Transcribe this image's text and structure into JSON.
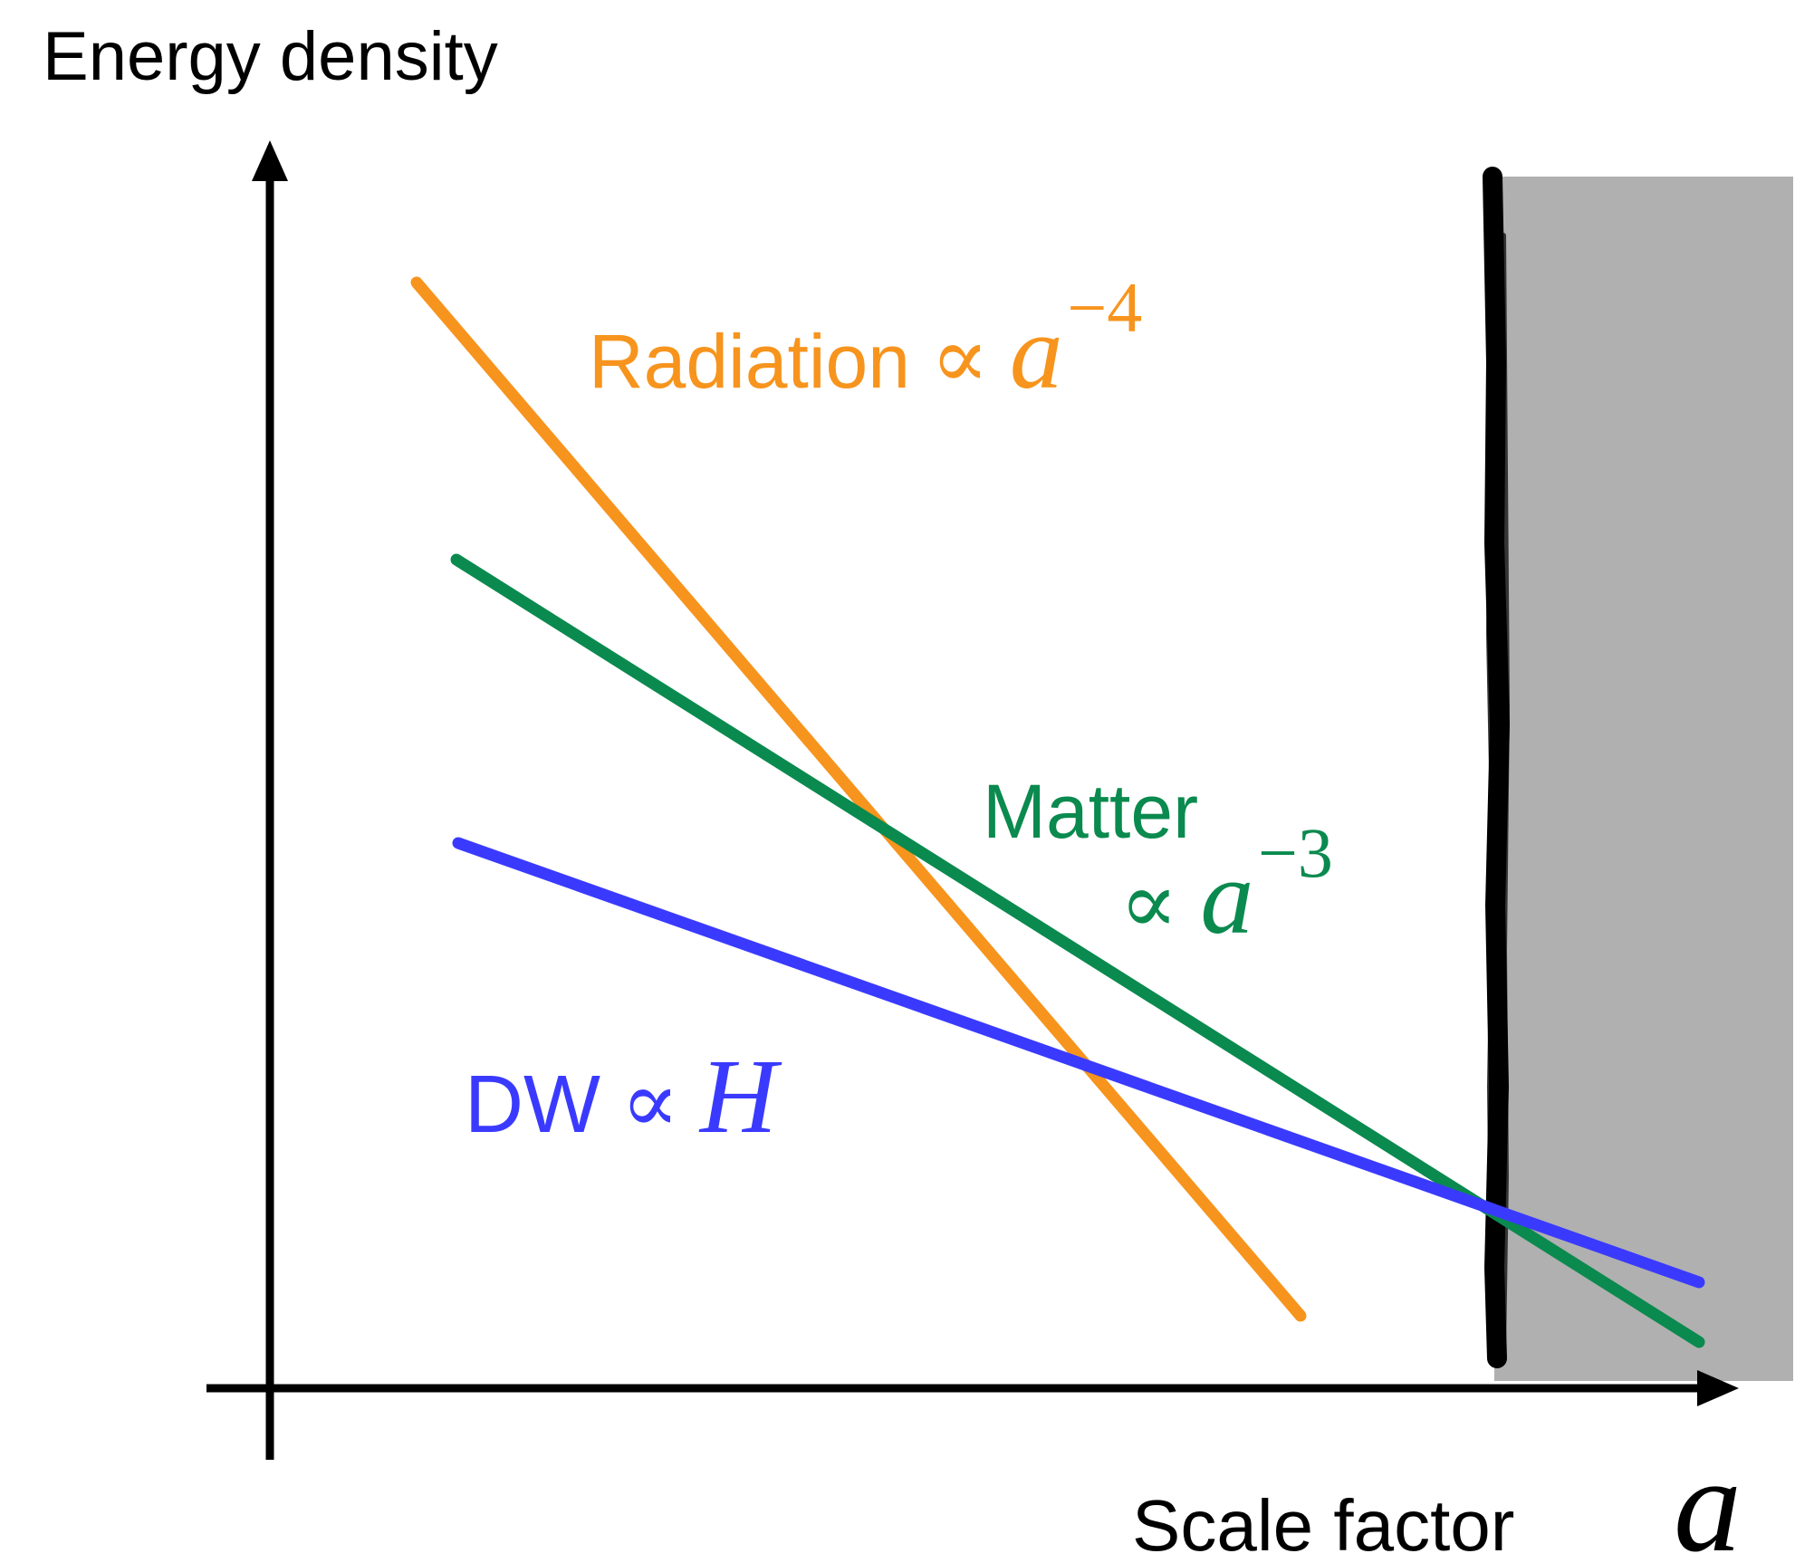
{
  "y_axis_label": "Energy density",
  "x_axis_label": "Scale factor",
  "x_axis_symbol": "a",
  "labels": {
    "radiation": {
      "text": "Radiation",
      "prop": "∝",
      "symbol": "a",
      "exponent": "−4",
      "color": "#f7941d"
    },
    "matter": {
      "text": "Matter",
      "prop": "∝",
      "symbol": "a",
      "exponent": "−3",
      "color": "#0a8a4e"
    },
    "dw": {
      "text": "DW",
      "prop": "∝",
      "symbol": "H",
      "color": "#3a3aff"
    }
  },
  "colors": {
    "radiation": "#f7941d",
    "matter": "#0a8a4e",
    "dw": "#3a3aff",
    "axes": "#000000",
    "shaded_region": "#b0b0b0",
    "boundary": "#000000"
  }
}
